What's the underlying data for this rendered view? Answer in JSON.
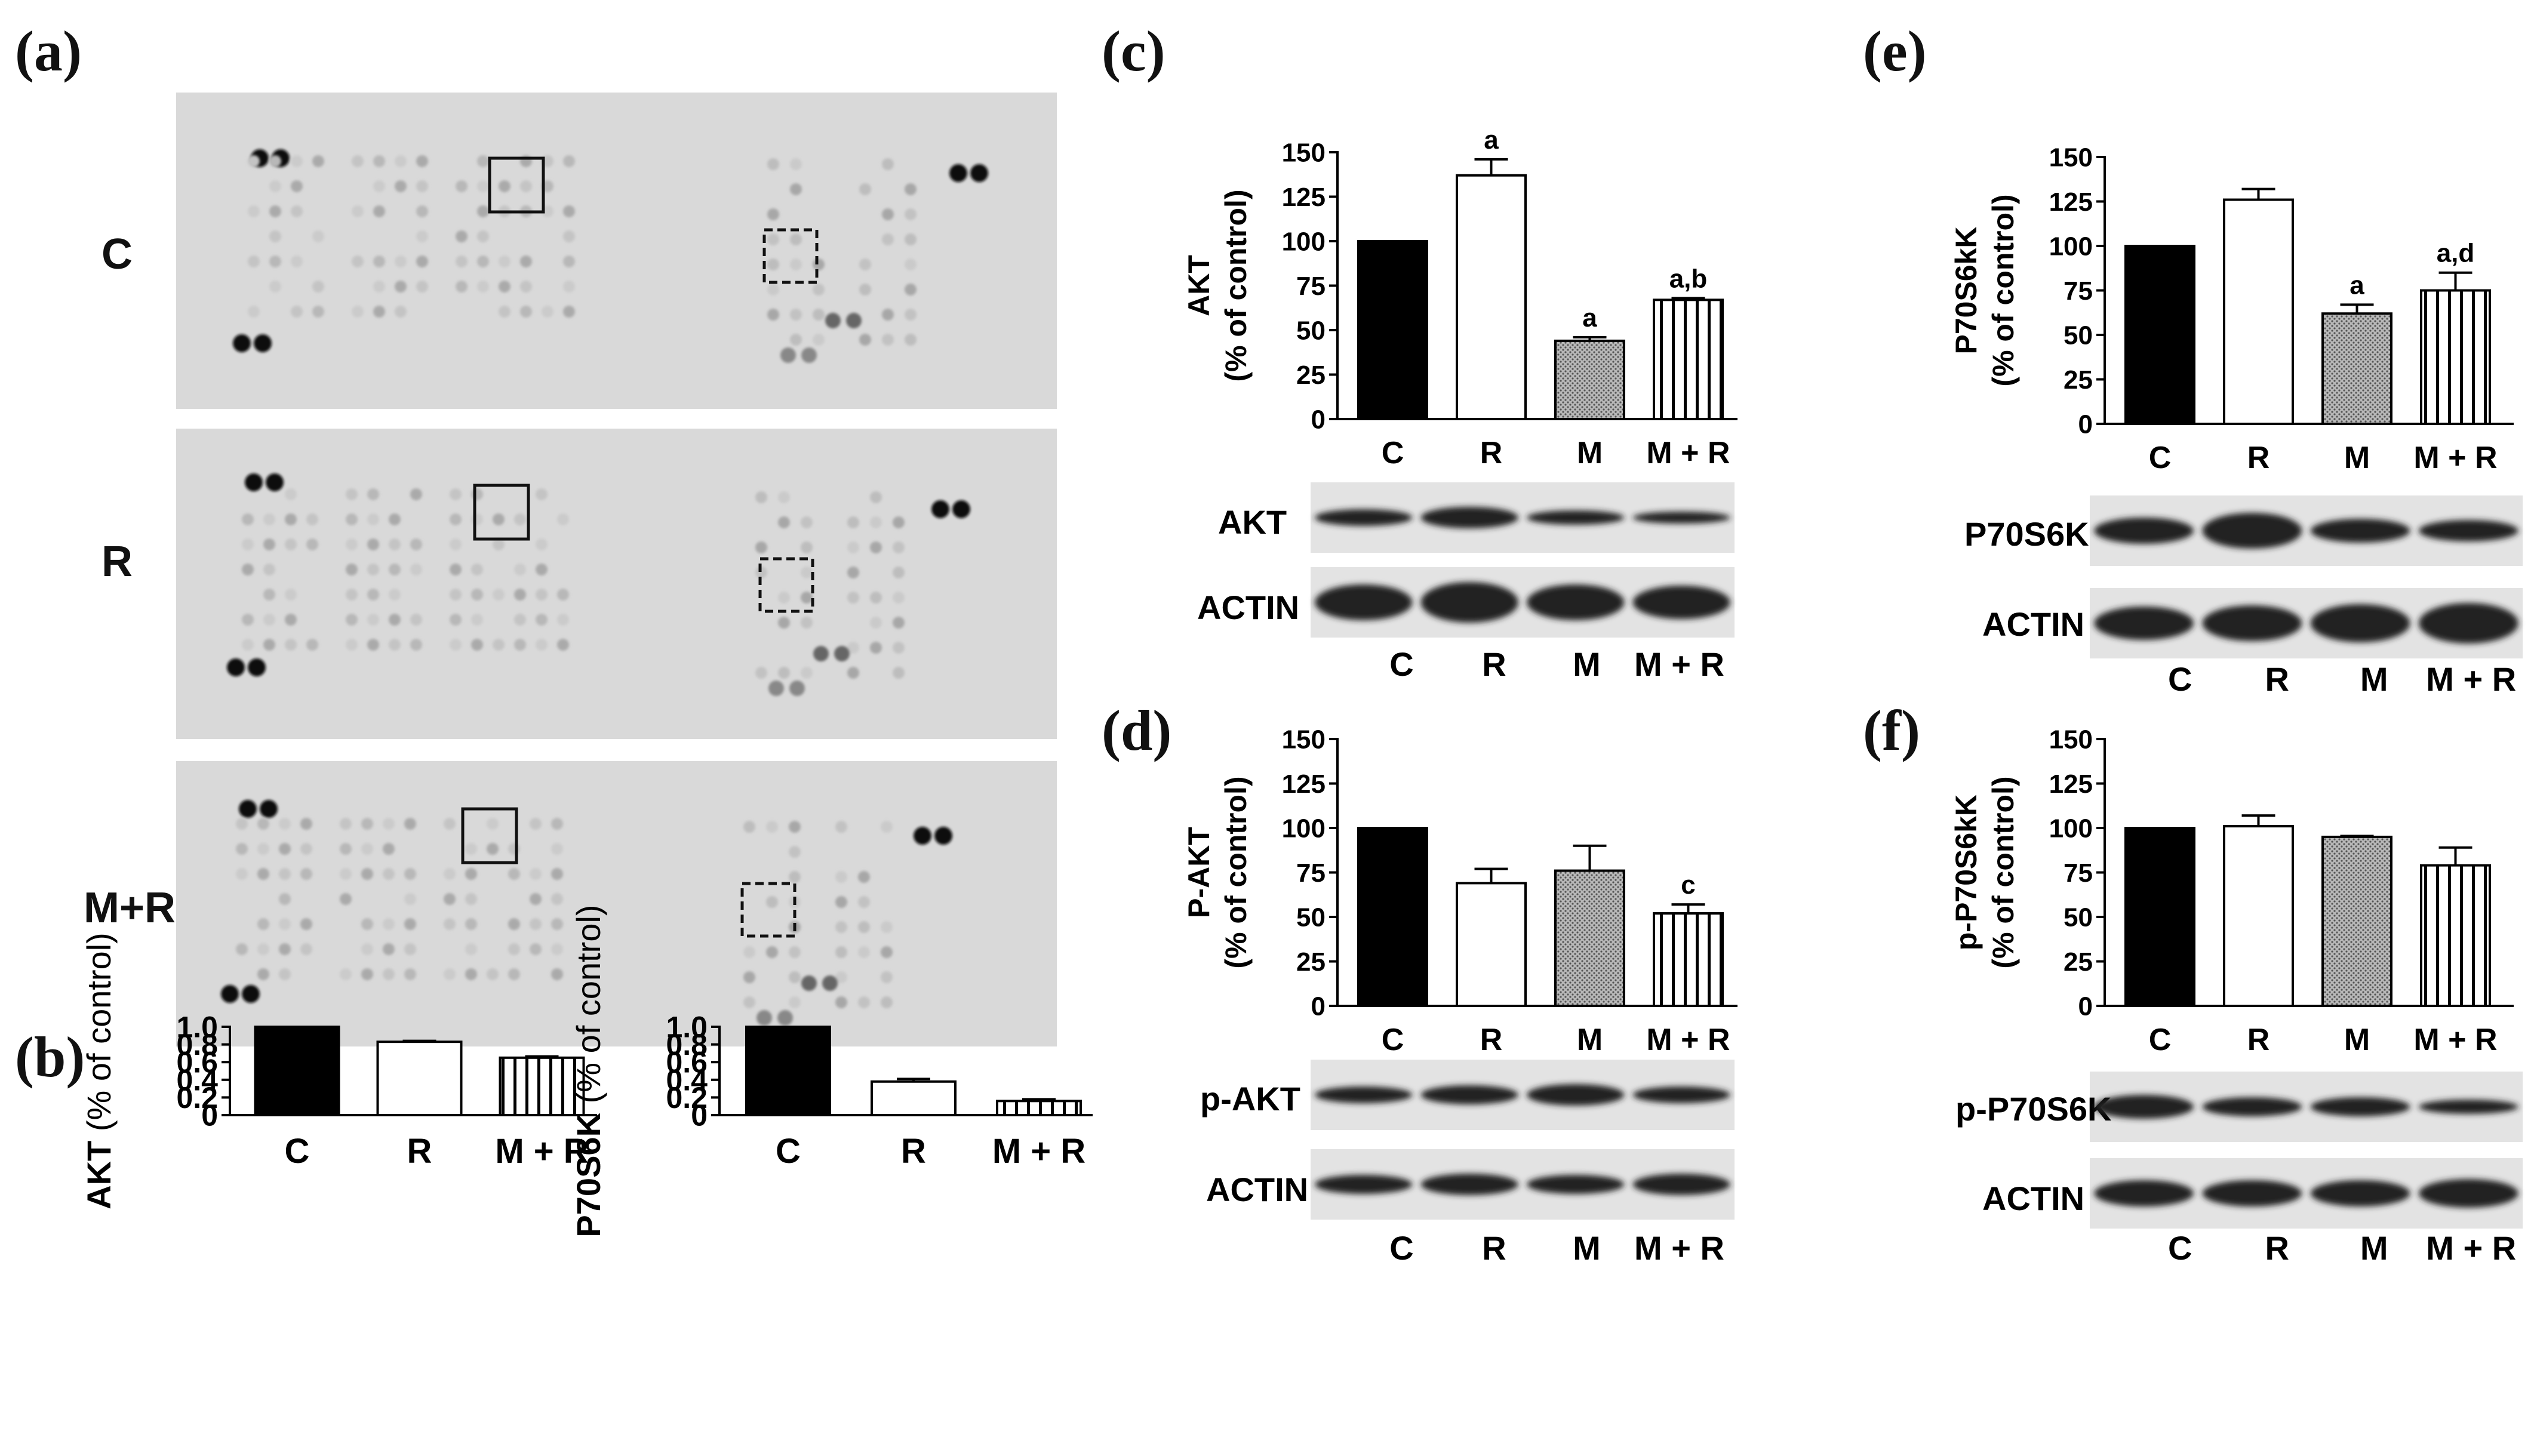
{
  "panel_labels": {
    "a": "(a)",
    "b": "(b)",
    "c": "(c)",
    "d": "(d)",
    "e": "(e)",
    "f": "(f)"
  },
  "panel_a": {
    "row_labels": [
      "C",
      "R",
      "M+R"
    ]
  },
  "colors": {
    "solid": "#000000",
    "open": "#ffffff",
    "dotted": "#9a9a9a",
    "striped": "#000000"
  },
  "chart_data": [
    {
      "id": "b1",
      "type": "bar",
      "ylabel_main": "AKT",
      "ylabel_sub": "(% of control)",
      "categories": [
        "C",
        "R",
        "M + R"
      ],
      "patterns": [
        "solid",
        "open",
        "striped"
      ],
      "values": [
        1.0,
        0.83,
        0.65
      ],
      "errors": [
        0.0,
        0.01,
        0.015
      ],
      "ylim": [
        0,
        1.0
      ],
      "yticks": [
        "0",
        "0.2",
        "0.4",
        "0.6",
        "0.8",
        "1.0"
      ],
      "annotations": [
        "",
        "",
        ""
      ]
    },
    {
      "id": "b2",
      "type": "bar",
      "ylabel_main": "P70S6K",
      "ylabel_sub": "(% of control)",
      "categories": [
        "C",
        "R",
        "M + R"
      ],
      "patterns": [
        "solid",
        "open",
        "striped"
      ],
      "values": [
        1.0,
        0.38,
        0.16
      ],
      "errors": [
        0.0,
        0.03,
        0.02
      ],
      "ylim": [
        0,
        1.0
      ],
      "yticks": [
        "0",
        "0.2",
        "0.4",
        "0.6",
        "0.8",
        "1.0"
      ],
      "annotations": [
        "",
        "",
        ""
      ]
    },
    {
      "id": "c",
      "type": "bar",
      "ylabel_main": "AKT",
      "ylabel_sub": "(% of control)",
      "categories": [
        "C",
        "R",
        "M",
        "M + R"
      ],
      "patterns": [
        "solid",
        "open",
        "dotted",
        "striped"
      ],
      "values": [
        100,
        137,
        44,
        67
      ],
      "errors": [
        0,
        9,
        2,
        1
      ],
      "ylim": [
        0,
        150
      ],
      "yticks": [
        "0",
        "25",
        "50",
        "75",
        "100",
        "125",
        "150"
      ],
      "annotations": [
        "",
        "a",
        "a",
        "a,b"
      ]
    },
    {
      "id": "d",
      "type": "bar",
      "ylabel_main": "P-AKT",
      "ylabel_sub": "(% of control)",
      "categories": [
        "C",
        "R",
        "M",
        "M + R"
      ],
      "patterns": [
        "solid",
        "open",
        "dotted",
        "striped"
      ],
      "values": [
        100,
        69,
        76,
        52
      ],
      "errors": [
        0,
        8,
        14,
        5
      ],
      "ylim": [
        0,
        150
      ],
      "yticks": [
        "0",
        "25",
        "50",
        "75",
        "100",
        "125",
        "150"
      ],
      "annotations": [
        "",
        "",
        "",
        "c"
      ]
    },
    {
      "id": "e",
      "type": "bar",
      "ylabel_main": "P70S6kK",
      "ylabel_sub": "(% of control)",
      "categories": [
        "C",
        "R",
        "M",
        "M + R"
      ],
      "patterns": [
        "solid",
        "open",
        "dotted",
        "striped"
      ],
      "values": [
        100,
        126,
        62,
        75
      ],
      "errors": [
        0,
        6,
        5,
        10
      ],
      "ylim": [
        0,
        150
      ],
      "yticks": [
        "0",
        "25",
        "50",
        "75",
        "100",
        "125",
        "150"
      ],
      "annotations": [
        "",
        "",
        "a",
        "a,d"
      ]
    },
    {
      "id": "f",
      "type": "bar",
      "ylabel_main": "p-P70S6kK",
      "ylabel_sub": "(% of control)",
      "categories": [
        "C",
        "R",
        "M",
        "M + R"
      ],
      "patterns": [
        "solid",
        "open",
        "dotted",
        "striped"
      ],
      "values": [
        100,
        101,
        95,
        79
      ],
      "errors": [
        0,
        6,
        0.5,
        10
      ],
      "ylim": [
        0,
        150
      ],
      "yticks": [
        "0",
        "25",
        "50",
        "75",
        "100",
        "125",
        "150"
      ],
      "annotations": [
        "",
        "",
        "",
        ""
      ]
    }
  ],
  "blots": {
    "c": {
      "band1": "AKT",
      "band2": "ACTIN",
      "lanes": [
        "C",
        "R",
        "M",
        "M + R"
      ]
    },
    "d": {
      "band1": "p-AKT",
      "band2": "ACTIN",
      "lanes": [
        "C",
        "R",
        "M",
        "M + R"
      ]
    },
    "e": {
      "band1": "P70S6K",
      "band2": "ACTIN",
      "lanes": [
        "C",
        "R",
        "M",
        "M + R"
      ]
    },
    "f": {
      "band1": "p-P70S6K",
      "band2": "ACTIN",
      "lanes": [
        "C",
        "R",
        "M",
        "M + R"
      ]
    }
  }
}
